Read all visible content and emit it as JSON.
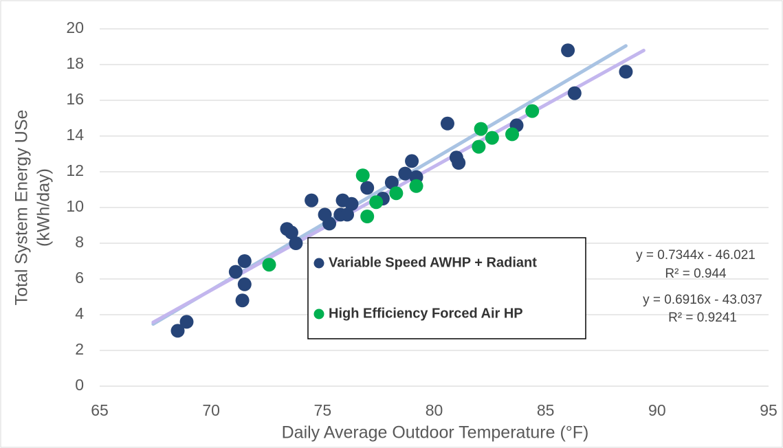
{
  "chart_data": {
    "type": "scatter",
    "x_label": "Daily Average Outdoor Temperature (°F)",
    "y_label": [
      "Total System Energy USe",
      "(kWh/day)"
    ],
    "xlim": [
      65,
      95
    ],
    "xticks": [
      65,
      70,
      75,
      80,
      85,
      90,
      95
    ],
    "ylim": [
      0,
      20
    ],
    "yticks": [
      0,
      2,
      4,
      6,
      8,
      10,
      12,
      14,
      16,
      18,
      20
    ],
    "grid": true,
    "series": [
      {
        "name": "Variable Speed AWHP + Radiant",
        "color": "#264478",
        "x": [
          68.5,
          68.9,
          71.1,
          71.5,
          71.4,
          71.5,
          73.4,
          73.6,
          73.8,
          74.5,
          75.1,
          75.3,
          75.9,
          75.8,
          76.1,
          76.3,
          77.0,
          77.7,
          78.1,
          78.7,
          79.0,
          79.2,
          80.6,
          81.0,
          81.1,
          83.7,
          86.0,
          86.3,
          88.6
        ],
        "values": [
          3.1,
          3.6,
          6.4,
          7.0,
          4.8,
          5.7,
          8.8,
          8.6,
          8.0,
          10.4,
          9.6,
          9.1,
          10.4,
          9.6,
          9.6,
          10.2,
          11.1,
          10.5,
          11.4,
          11.9,
          12.6,
          11.7,
          14.7,
          12.8,
          12.5,
          14.6,
          18.8,
          16.4,
          17.6
        ]
      },
      {
        "name": "High Efficiency Forced Air HP",
        "color": "#00b050",
        "x": [
          72.6,
          76.8,
          77.0,
          77.4,
          78.3,
          79.2,
          82.1,
          82.0,
          82.6,
          83.5,
          84.4
        ],
        "values": [
          6.8,
          11.8,
          9.5,
          10.3,
          10.8,
          11.2,
          14.4,
          13.4,
          13.9,
          14.1,
          15.4
        ]
      }
    ],
    "trendlines": [
      {
        "equation": "y = 0.7344x - 46.021",
        "r2": "R² = 0.944",
        "slope": 0.7344,
        "intercept": -46.021,
        "x_range": [
          67.4,
          88.6
        ],
        "color": "#a9c3e3"
      },
      {
        "equation": "y = 0.6916x - 43.037",
        "r2": "R² = 0.9241",
        "slope": 0.6916,
        "intercept": -43.037,
        "x_range": [
          67.4,
          89.4
        ],
        "color": "#c3b6ee"
      }
    ]
  }
}
